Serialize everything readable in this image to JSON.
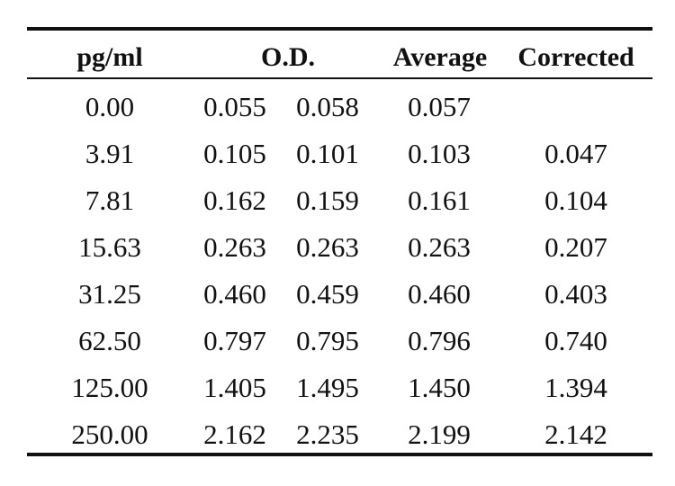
{
  "table": {
    "headers": {
      "pg_ml": "pg/ml",
      "od": "O.D.",
      "average": "Average",
      "corrected": "Corrected"
    },
    "rows": [
      {
        "pg_ml": "0.00",
        "od1": "0.055",
        "od2": "0.058",
        "average": "0.057",
        "corrected": ""
      },
      {
        "pg_ml": "3.91",
        "od1": "0.105",
        "od2": "0.101",
        "average": "0.103",
        "corrected": "0.047"
      },
      {
        "pg_ml": "7.81",
        "od1": "0.162",
        "od2": "0.159",
        "average": "0.161",
        "corrected": "0.104"
      },
      {
        "pg_ml": "15.63",
        "od1": "0.263",
        "od2": "0.263",
        "average": "0.263",
        "corrected": "0.207"
      },
      {
        "pg_ml": "31.25",
        "od1": "0.460",
        "od2": "0.459",
        "average": "0.460",
        "corrected": "0.403"
      },
      {
        "pg_ml": "62.50",
        "od1": "0.797",
        "od2": "0.795",
        "average": "0.796",
        "corrected": "0.740"
      },
      {
        "pg_ml": "125.00",
        "od1": "1.405",
        "od2": "1.495",
        "average": "1.450",
        "corrected": "1.394"
      },
      {
        "pg_ml": "250.00",
        "od1": "2.162",
        "od2": "2.235",
        "average": "2.199",
        "corrected": "2.142"
      }
    ]
  }
}
